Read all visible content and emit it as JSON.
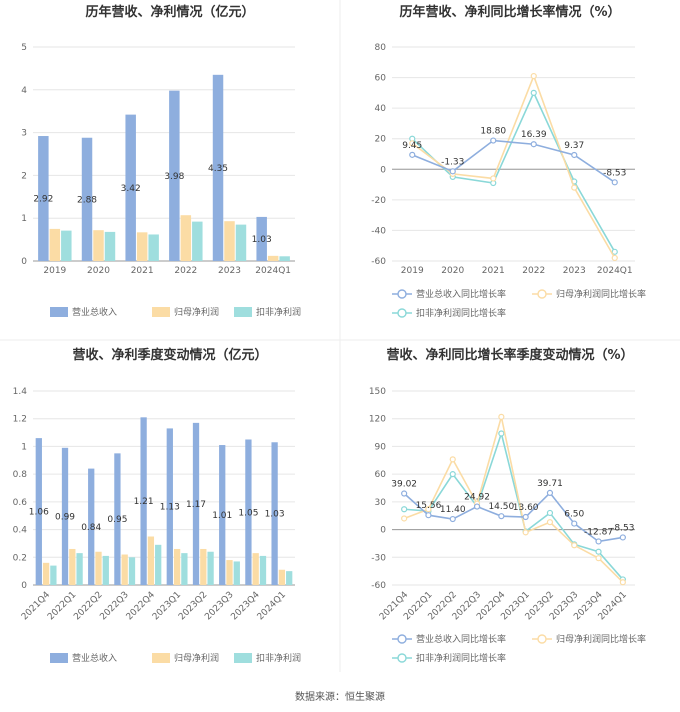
{
  "source": "数据来源：恒生聚源",
  "colors": {
    "revenue": "#8eaede",
    "netprofit": "#fbdca5",
    "deducted": "#9fdede",
    "revenue_line": "#8eaede",
    "netprofit_line": "#fbdca5",
    "deducted_line": "#8ad8d8"
  },
  "chart_data": [
    {
      "type": "bar",
      "title": "历年营收、净利情况（亿元）",
      "categories": [
        "2019",
        "2020",
        "2021",
        "2022",
        "2023",
        "2024Q1"
      ],
      "ylim": [
        0,
        5
      ],
      "yticks": [
        "0",
        "1",
        "2",
        "3",
        "4",
        "5"
      ],
      "grid": true,
      "legend": "bottom",
      "series": [
        {
          "name": "营业总收入",
          "values": [
            2.92,
            2.88,
            3.42,
            3.98,
            4.35,
            1.03
          ],
          "labels": [
            "2.92",
            "2.88",
            "3.42",
            "3.98",
            "4.35",
            "1.03"
          ]
        },
        {
          "name": "归母净利润",
          "values": [
            0.75,
            0.72,
            0.67,
            1.07,
            0.93,
            0.12
          ]
        },
        {
          "name": "扣非净利润",
          "values": [
            0.71,
            0.68,
            0.62,
            0.92,
            0.85,
            0.11
          ]
        }
      ]
    },
    {
      "type": "line",
      "title": "历年营收、净利同比增长率情况（%）",
      "categories": [
        "2019",
        "2020",
        "2021",
        "2022",
        "2023",
        "2024Q1"
      ],
      "ylim": [
        -60,
        80
      ],
      "yticks": [
        "-60",
        "-40",
        "-20",
        "0",
        "20",
        "40",
        "60",
        "80"
      ],
      "grid": true,
      "legend": "bottom",
      "series": [
        {
          "name": "营业总收入同比增长率",
          "values": [
            9.45,
            -1.33,
            18.8,
            16.39,
            9.37,
            -8.53
          ],
          "labels": [
            "9.45",
            "-1.33",
            "18.80",
            "16.39",
            "9.37",
            "-8.53"
          ]
        },
        {
          "name": "归母净利润同比增长率",
          "values": [
            17,
            -3,
            -6,
            61,
            -12,
            -58
          ]
        },
        {
          "name": "扣非净利润同比增长率",
          "values": [
            20,
            -5,
            -9,
            50,
            -8,
            -54
          ]
        }
      ]
    },
    {
      "type": "bar",
      "title": "营收、净利季度变动情况（亿元）",
      "categories": [
        "2021Q4",
        "2022Q1",
        "2022Q2",
        "2022Q3",
        "2022Q4",
        "2023Q1",
        "2023Q2",
        "2023Q3",
        "2023Q4",
        "2024Q1"
      ],
      "ylim": [
        0,
        1.4
      ],
      "yticks": [
        "0",
        "0.2",
        "0.4",
        "0.6",
        "0.8",
        "1",
        "1.2",
        "1.4"
      ],
      "grid": true,
      "legend": "bottom",
      "series": [
        {
          "name": "营业总收入",
          "values": [
            1.06,
            0.99,
            0.84,
            0.95,
            1.21,
            1.13,
            1.17,
            1.01,
            1.05,
            1.03
          ],
          "labels": [
            "1.06",
            "0.99",
            "0.84",
            "0.95",
            "1.21",
            "1.13",
            "1.17",
            "1.01",
            "1.05",
            "1.03"
          ]
        },
        {
          "name": "归母净利润",
          "values": [
            0.16,
            0.26,
            0.24,
            0.22,
            0.35,
            0.26,
            0.26,
            0.18,
            0.23,
            0.11
          ]
        },
        {
          "name": "扣非净利润",
          "values": [
            0.14,
            0.23,
            0.21,
            0.2,
            0.29,
            0.23,
            0.24,
            0.17,
            0.21,
            0.1
          ]
        }
      ]
    },
    {
      "type": "line",
      "title": "营收、净利同比增长率季度变动情况（%）",
      "categories": [
        "2021Q4",
        "2022Q1",
        "2022Q2",
        "2022Q3",
        "2022Q4",
        "2023Q1",
        "2023Q2",
        "2023Q3",
        "2023Q4",
        "2024Q1"
      ],
      "ylim": [
        -60,
        150
      ],
      "yticks": [
        "-60",
        "-30",
        "0",
        "30",
        "60",
        "90",
        "120",
        "150"
      ],
      "grid": true,
      "legend": "bottom",
      "series": [
        {
          "name": "营业总收入同比增长率",
          "values": [
            39.02,
            15.56,
            11.4,
            24.92,
            14.5,
            13.6,
            39.71,
            6.5,
            -12.87,
            -8.53
          ],
          "labels": [
            "39.02",
            "15.56",
            "11.40",
            "24.92",
            "14.50",
            "13.60",
            "39.71",
            "6.50",
            "-12.87",
            "-8.53"
          ]
        },
        {
          "name": "归母净利润同比增长率",
          "values": [
            12,
            22,
            76,
            28,
            122,
            -3,
            8,
            -17,
            -31,
            -57
          ]
        },
        {
          "name": "扣非净利润同比增长率",
          "values": [
            22,
            20,
            60,
            25,
            104,
            -2,
            18,
            -16,
            -24,
            -54
          ]
        }
      ]
    }
  ]
}
